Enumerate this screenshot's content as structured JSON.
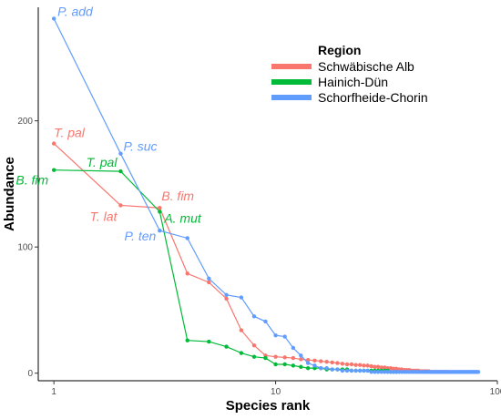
{
  "chart_data": {
    "type": "line",
    "xlabel": "Species rank",
    "ylabel": "Abundance",
    "x_scale": "log",
    "xlim": [
      0.85,
      100
    ],
    "ylim": [
      -6,
      290
    ],
    "x_ticks": [
      1,
      10,
      100
    ],
    "y_ticks": [
      0,
      100,
      200
    ],
    "grid": false,
    "legend": {
      "title": "Region",
      "position": "top-right"
    },
    "series": [
      {
        "name": "Schwäbische Alb",
        "color": "#F8766D",
        "values": [
          182,
          133,
          131,
          79,
          72,
          59,
          34,
          22,
          14,
          13,
          12.5,
          12,
          11,
          10.5,
          10,
          9.5,
          9,
          8.5,
          8,
          7.5,
          7,
          7,
          6.5,
          6.5,
          6,
          6,
          5.5,
          5,
          5,
          4.5,
          4.5,
          4,
          4,
          3.5,
          3.5,
          3,
          3,
          2.5,
          2.5,
          2.5,
          2,
          2,
          2,
          2,
          1.5,
          1.5,
          1.5,
          1.5,
          1.5,
          1,
          1,
          1,
          1,
          1,
          1,
          1,
          1,
          1,
          1,
          1
        ]
      },
      {
        "name": "Hainich-Dün",
        "color": "#00BA38",
        "values": [
          161,
          160,
          128,
          26,
          25,
          21,
          16,
          13,
          12,
          7,
          7,
          6,
          5,
          4,
          4,
          4,
          3,
          3,
          3,
          3,
          3,
          2,
          2,
          2,
          2,
          2,
          2,
          2,
          2,
          2,
          2,
          2,
          1,
          1,
          1
        ]
      },
      {
        "name": "Schorfheide-Chorin",
        "color": "#619CFF",
        "values": [
          281,
          174,
          113,
          107,
          75,
          62,
          60,
          45,
          41,
          30,
          29,
          20,
          14,
          8,
          6,
          4,
          4,
          3,
          3,
          2,
          2,
          2,
          2,
          2,
          2,
          2,
          1,
          1,
          1,
          1,
          1,
          1,
          1,
          1,
          1,
          1,
          1,
          1,
          1,
          1,
          1,
          1,
          1,
          1,
          1,
          1,
          1,
          1,
          1,
          1,
          1,
          1,
          1,
          1,
          1,
          1,
          1,
          1,
          1,
          1,
          1,
          1,
          1,
          1,
          1,
          1,
          1,
          1,
          1,
          1,
          1,
          1,
          1,
          1,
          1,
          1,
          1,
          1,
          1,
          1,
          1,
          1
        ]
      }
    ],
    "annotations": [
      {
        "text": "P. add",
        "series": "Schorfheide-Chorin"
      },
      {
        "text": "P. suc",
        "series": "Schorfheide-Chorin"
      },
      {
        "text": "P. ten",
        "series": "Schorfheide-Chorin"
      },
      {
        "text": "T. pal",
        "series": "Schwäbische Alb"
      },
      {
        "text": "T. lat",
        "series": "Schwäbische Alb"
      },
      {
        "text": "B. fim",
        "series": "Schwäbische Alb"
      },
      {
        "text": "T. pal",
        "series": "Hainich-Dün"
      },
      {
        "text": "B. fim",
        "series": "Hainich-Dün"
      },
      {
        "text": "A. mut",
        "series": "Hainich-Dün"
      }
    ]
  }
}
